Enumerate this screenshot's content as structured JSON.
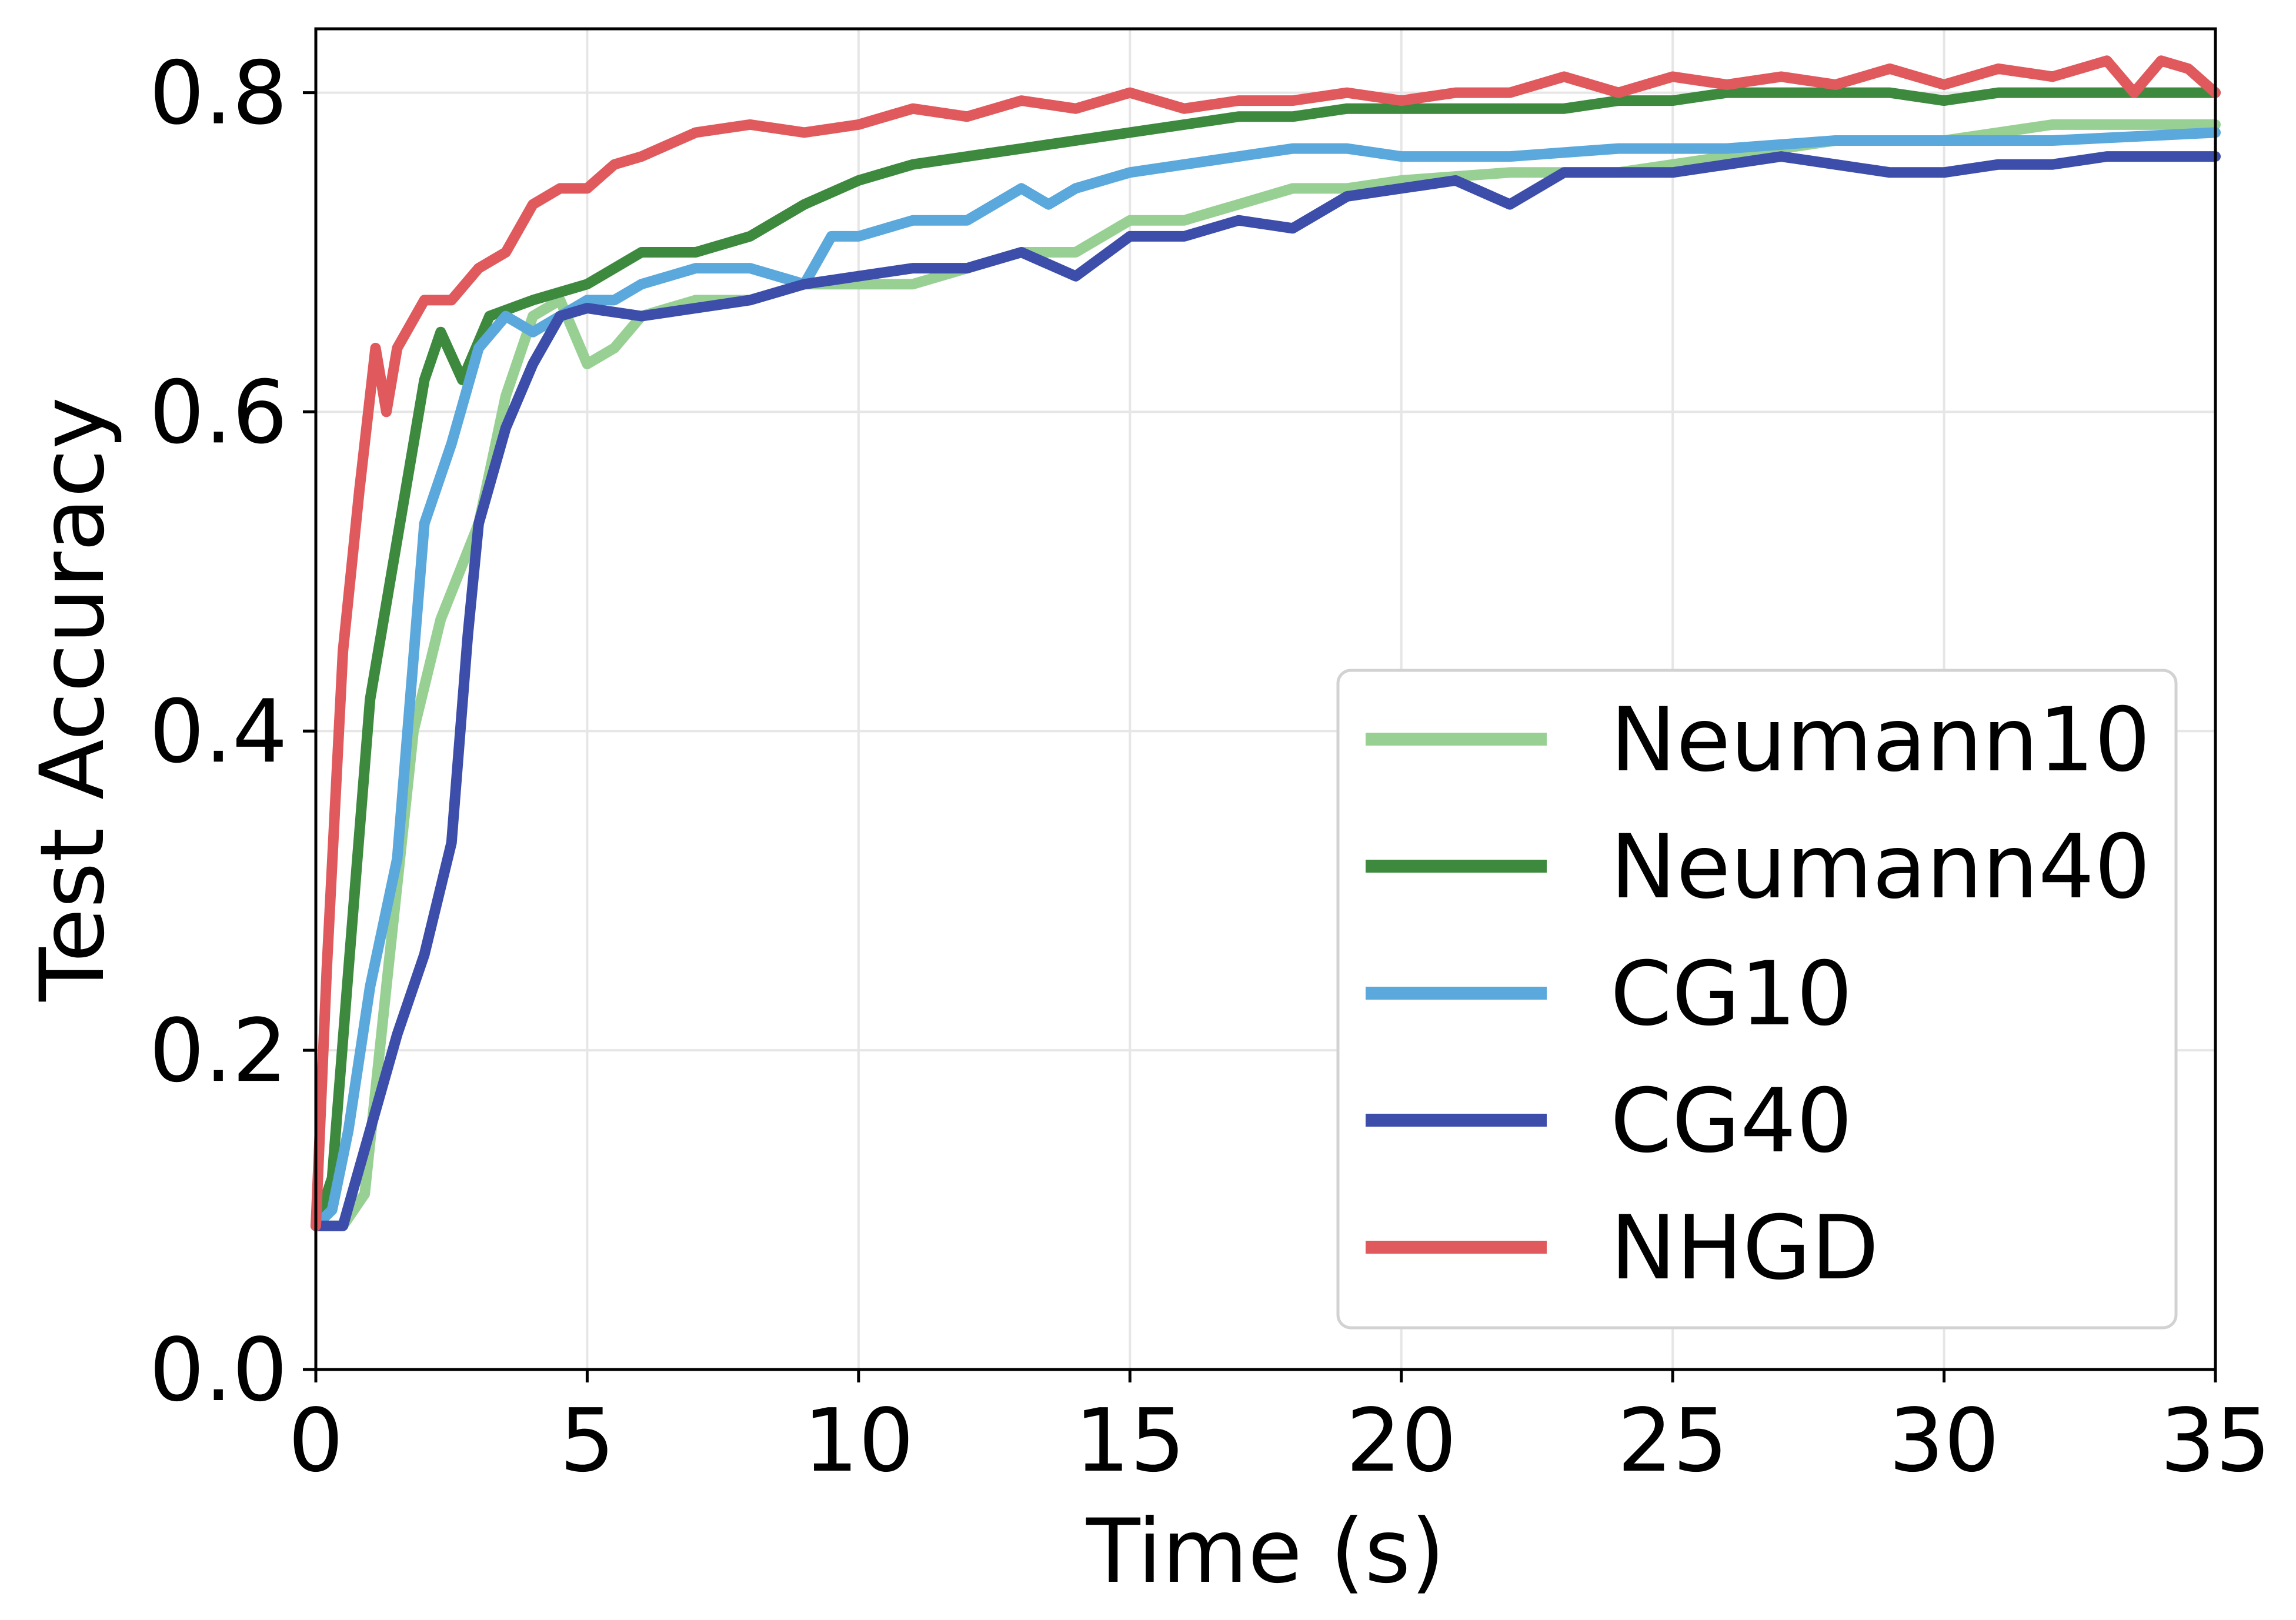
{
  "chart_data": {
    "type": "line",
    "title": "",
    "xlabel": "Time (s)",
    "ylabel": "Test Accuracy",
    "xlim": [
      0,
      35
    ],
    "ylim": [
      0,
      0.84
    ],
    "xticks": [
      0,
      5,
      10,
      15,
      20,
      25,
      30,
      35
    ],
    "yticks": [
      0.0,
      0.2,
      0.4,
      0.6,
      0.8
    ],
    "xtick_labels": [
      "0",
      "5",
      "10",
      "15",
      "20",
      "25",
      "30",
      "35"
    ],
    "ytick_labels": [
      "0.0",
      "0.2",
      "0.4",
      "0.6",
      "0.8"
    ],
    "grid": true,
    "legend_position": "lower-right",
    "series": [
      {
        "name": "Neumann10",
        "color": "#98d094",
        "x": [
          0,
          0.5,
          0.9,
          1.3,
          1.8,
          2.3,
          3.0,
          3.5,
          4.0,
          4.5,
          5.0,
          5.5,
          6.0,
          7.0,
          8.0,
          9.0,
          10.0,
          11.0,
          12.0,
          13.0,
          14.0,
          15.0,
          16.0,
          17.0,
          18.0,
          19.0,
          20.0,
          22.0,
          24.0,
          26.0,
          28.0,
          30.0,
          32.0,
          35.0
        ],
        "values": [
          0.09,
          0.09,
          0.11,
          0.24,
          0.4,
          0.47,
          0.53,
          0.61,
          0.66,
          0.67,
          0.63,
          0.64,
          0.66,
          0.67,
          0.67,
          0.68,
          0.68,
          0.68,
          0.69,
          0.7,
          0.7,
          0.72,
          0.72,
          0.73,
          0.74,
          0.74,
          0.745,
          0.75,
          0.75,
          0.76,
          0.77,
          0.77,
          0.78,
          0.78
        ]
      },
      {
        "name": "Neumann40",
        "color": "#3d8a3f",
        "x": [
          0,
          0.3,
          0.6,
          1.0,
          1.5,
          2.0,
          2.3,
          2.7,
          3.2,
          4.0,
          5.0,
          5.5,
          6.0,
          7.0,
          8.0,
          9.0,
          10.0,
          11.0,
          12.0,
          13.0,
          14.0,
          15.0,
          16.0,
          17.0,
          18.0,
          19.0,
          20.0,
          21.0,
          22.0,
          23.0,
          24.0,
          25.0,
          26.0,
          27.0,
          28.0,
          29.0,
          30.0,
          31.0,
          32.0,
          33.0,
          34.0,
          35.0
        ],
        "values": [
          0.09,
          0.12,
          0.25,
          0.42,
          0.52,
          0.62,
          0.65,
          0.62,
          0.66,
          0.67,
          0.68,
          0.69,
          0.7,
          0.7,
          0.71,
          0.73,
          0.745,
          0.755,
          0.76,
          0.765,
          0.77,
          0.775,
          0.78,
          0.785,
          0.785,
          0.79,
          0.79,
          0.79,
          0.79,
          0.79,
          0.795,
          0.795,
          0.8,
          0.8,
          0.8,
          0.8,
          0.795,
          0.8,
          0.8,
          0.8,
          0.8,
          0.8
        ]
      },
      {
        "name": "CG10",
        "color": "#5aa8dc",
        "x": [
          0,
          0.3,
          0.6,
          1.0,
          1.5,
          2.0,
          2.5,
          3.0,
          3.5,
          4.0,
          5.0,
          5.5,
          6.0,
          7.0,
          8.0,
          9.0,
          9.5,
          10.0,
          11.0,
          12.0,
          13.0,
          13.5,
          14.0,
          15.0,
          16.0,
          17.0,
          18.0,
          19.0,
          20.0,
          21.0,
          22.0,
          24.0,
          26.0,
          28.0,
          30.0,
          32.0,
          35.0
        ],
        "values": [
          0.09,
          0.1,
          0.15,
          0.24,
          0.32,
          0.53,
          0.58,
          0.64,
          0.66,
          0.65,
          0.67,
          0.67,
          0.68,
          0.69,
          0.69,
          0.68,
          0.71,
          0.71,
          0.72,
          0.72,
          0.74,
          0.73,
          0.74,
          0.75,
          0.755,
          0.76,
          0.765,
          0.765,
          0.76,
          0.76,
          0.76,
          0.765,
          0.765,
          0.77,
          0.77,
          0.77,
          0.775
        ]
      },
      {
        "name": "CG40",
        "color": "#3d4daa",
        "x": [
          0,
          0.5,
          1.0,
          1.5,
          2.0,
          2.5,
          2.8,
          3.0,
          3.5,
          4.0,
          4.5,
          5.0,
          6.0,
          7.0,
          8.0,
          9.0,
          10.0,
          11.0,
          12.0,
          13.0,
          14.0,
          15.0,
          16.0,
          17.0,
          18.0,
          19.0,
          20.0,
          21.0,
          22.0,
          23.0,
          24.0,
          25.0,
          26.0,
          27.0,
          28.0,
          29.0,
          30.0,
          31.0,
          32.0,
          33.0,
          34.0,
          35.0
        ],
        "values": [
          0.09,
          0.09,
          0.15,
          0.21,
          0.26,
          0.33,
          0.46,
          0.53,
          0.59,
          0.63,
          0.66,
          0.665,
          0.66,
          0.665,
          0.67,
          0.68,
          0.685,
          0.69,
          0.69,
          0.7,
          0.685,
          0.71,
          0.71,
          0.72,
          0.715,
          0.735,
          0.74,
          0.745,
          0.73,
          0.75,
          0.75,
          0.75,
          0.755,
          0.76,
          0.755,
          0.75,
          0.75,
          0.755,
          0.755,
          0.76,
          0.76,
          0.76
        ]
      },
      {
        "name": "NHGD",
        "color": "#e05a5d",
        "x": [
          0,
          0.2,
          0.5,
          0.8,
          1.1,
          1.3,
          1.5,
          2.0,
          2.5,
          3.0,
          3.5,
          4.0,
          4.5,
          5.0,
          5.5,
          6.0,
          7.0,
          8.0,
          9.0,
          10.0,
          10.5,
          11.0,
          12.0,
          13.0,
          14.0,
          15.0,
          16.0,
          17.0,
          18.0,
          19.0,
          20.0,
          21.0,
          22.0,
          23.0,
          24.0,
          25.0,
          26.0,
          27.0,
          28.0,
          29.0,
          30.0,
          31.0,
          32.0,
          33.0,
          33.5,
          34.0,
          34.5,
          35.0
        ],
        "values": [
          0.09,
          0.25,
          0.45,
          0.55,
          0.64,
          0.6,
          0.64,
          0.67,
          0.67,
          0.69,
          0.7,
          0.73,
          0.74,
          0.74,
          0.755,
          0.76,
          0.775,
          0.78,
          0.775,
          0.78,
          0.785,
          0.79,
          0.785,
          0.795,
          0.79,
          0.8,
          0.79,
          0.795,
          0.795,
          0.8,
          0.795,
          0.8,
          0.8,
          0.81,
          0.8,
          0.81,
          0.805,
          0.81,
          0.805,
          0.815,
          0.805,
          0.815,
          0.81,
          0.82,
          0.8,
          0.82,
          0.815,
          0.8
        ]
      }
    ]
  }
}
